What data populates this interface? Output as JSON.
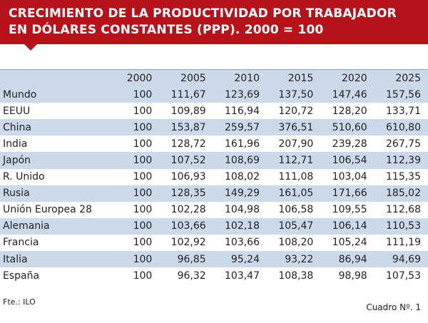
{
  "header": {
    "title_lines": [
      "CRECIMIENTO DE LA PRODUCTIVIDAD POR TRABAJADOR",
      "EN DÓLARES CONSTANTES (PPP). 2000 = 100"
    ]
  },
  "table": {
    "columns": [
      "",
      "2000",
      "2005",
      "2010",
      "2015",
      "2020",
      "2025"
    ],
    "rows": [
      [
        "Mundo",
        "100",
        "111,67",
        "123,69",
        "137,50",
        "147,46",
        "157,56"
      ],
      [
        "EEUU",
        "100",
        "109,89",
        "116,94",
        "120,72",
        "128,20",
        "133,71"
      ],
      [
        "China",
        "100",
        "153,87",
        "259,57",
        "376,51",
        "510,60",
        "610,80"
      ],
      [
        "India",
        "100",
        "128,72",
        "161,96",
        "207,90",
        "239,28",
        "267,75"
      ],
      [
        "Japón",
        "100",
        "107,52",
        "108,69",
        "112,71",
        "106,54",
        "112,39"
      ],
      [
        "R. Unido",
        "100",
        "106,93",
        "108,02",
        "111,08",
        "103,04",
        "115,35"
      ],
      [
        "Rusia",
        "100",
        "128,35",
        "149,29",
        "161,05",
        "171,66",
        "185,02"
      ],
      [
        "Unión Europea 28",
        "100",
        "102,28",
        "104,98",
        "106,58",
        "109,55",
        "112,68"
      ],
      [
        "Alemania",
        "100",
        "103,66",
        "102,18",
        "105,47",
        "106,14",
        "110,53"
      ],
      [
        "Francia",
        "100",
        "102,92",
        "103,66",
        "108,20",
        "105,24",
        "111,19"
      ],
      [
        "Italia",
        "100",
        "96,85",
        "95,24",
        "93,22",
        "86,94",
        "94,69"
      ],
      [
        "España",
        "100",
        "96,32",
        "103,47",
        "108,38",
        "98,98",
        "107,53"
      ]
    ]
  },
  "footer": {
    "source": "Fte.: ILO",
    "label": "Cuadro Nº. 1"
  }
}
